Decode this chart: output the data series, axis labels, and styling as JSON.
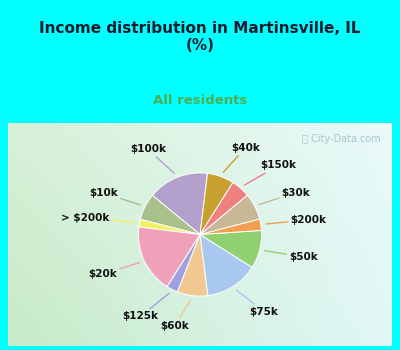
{
  "title": "Income distribution in Martinsville, IL\n(%)",
  "subtitle": "All residents",
  "title_color": "#1a1a2e",
  "subtitle_color": "#4caf50",
  "background_top": "#00ffff",
  "watermark": "City-Data.com",
  "labels": [
    "$100k",
    "$10k",
    "> $200k",
    "$20k",
    "$125k",
    "$60k",
    "$75k",
    "$50k",
    "$200k",
    "$30k",
    "$150k",
    "$40k"
  ],
  "values": [
    16,
    7,
    2,
    18,
    3,
    8,
    14,
    10,
    3,
    7,
    5,
    7
  ],
  "colors": [
    "#b3a0cc",
    "#a8c08a",
    "#f0f060",
    "#f0a0b8",
    "#a0a0e0",
    "#f0c890",
    "#a8c8f0",
    "#90d070",
    "#f0a050",
    "#c8b898",
    "#f08080",
    "#c8a030"
  ],
  "label_fontsize": 7.5,
  "startangle": 83,
  "chart_bg_left": "#c8eac8",
  "chart_bg_right": "#e8f8f8"
}
